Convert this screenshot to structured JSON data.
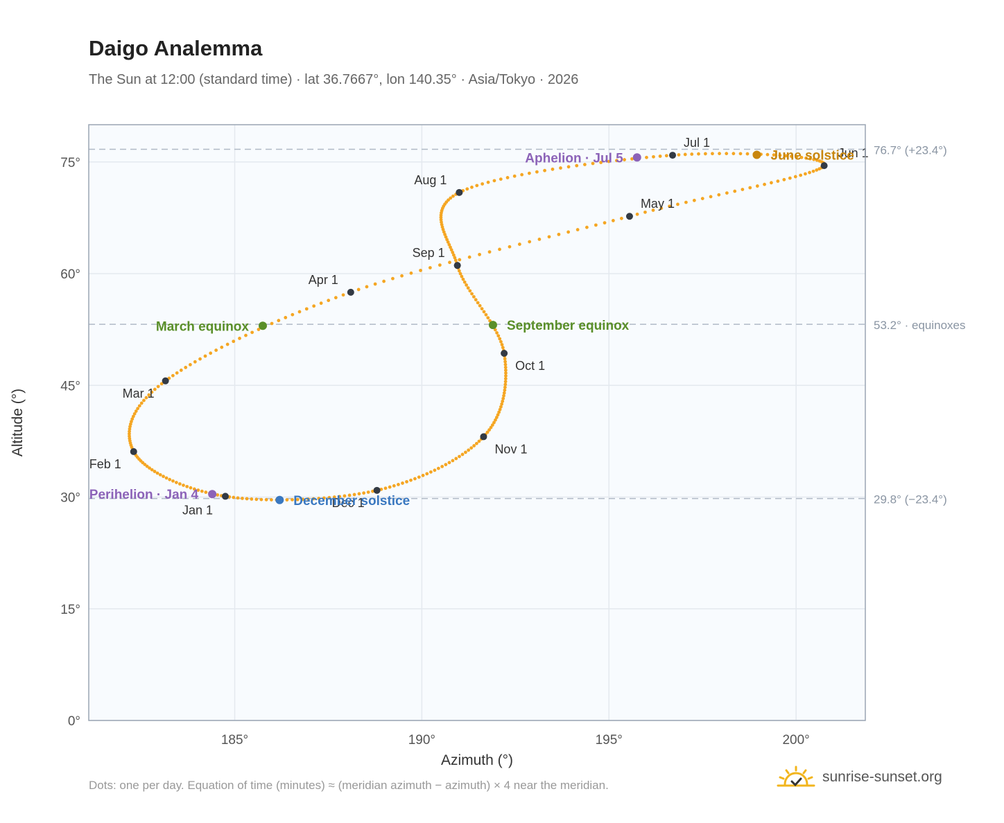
{
  "header": {
    "title": "Daigo Analemma",
    "subtitle": "The Sun at 12:00 (standard time) · lat 36.7667°, lon 140.35° · Asia/Tokyo · 2026"
  },
  "footer": {
    "note": "Dots: one per day. Equation of time (minutes) ≈ (meridian azimuth − azimuth) × 4 near the meridian.",
    "brand": "sunrise-sunset.org",
    "brand_icon": "sun-check-icon"
  },
  "chart_data": {
    "type": "scatter",
    "title": "Daigo Analemma",
    "xlabel": "Azimuth (°)",
    "ylabel": "Altitude (°)",
    "xlim": [
      181.1,
      201.85
    ],
    "ylim": [
      0,
      80
    ],
    "xticks": [
      185,
      190,
      195,
      200
    ],
    "yticks": [
      0,
      15,
      30,
      45,
      60,
      75
    ],
    "xtick_labels": [
      "185°",
      "190°",
      "195°",
      "200°"
    ],
    "ytick_labels": [
      "0°",
      "15°",
      "30°",
      "45°",
      "60°",
      "75°"
    ],
    "grid": true,
    "colors": {
      "track": "#f5a623",
      "month": "#333a44",
      "equinox": "#5a8f29",
      "june": "#c8860d",
      "december": "#3a78c0",
      "apsis": "#8c63b8",
      "refline": "#b0bac6"
    },
    "reference_lines": [
      {
        "y": 76.7,
        "label": "76.7° (+23.4°)"
      },
      {
        "y": 53.2,
        "label": "53.2° · equinoxes"
      },
      {
        "y": 29.8,
        "label": "29.8° (−23.4°)"
      }
    ],
    "month_markers": [
      {
        "label": "Jan 1",
        "x": 184.75,
        "y": 30.1
      },
      {
        "label": "Feb 1",
        "x": 182.3,
        "y": 36.1
      },
      {
        "label": "Mar 1",
        "x": 183.15,
        "y": 45.6
      },
      {
        "label": "Apr 1",
        "x": 188.1,
        "y": 57.5
      },
      {
        "label": "May 1",
        "x": 195.55,
        "y": 67.7
      },
      {
        "label": "Jun 1",
        "x": 200.75,
        "y": 74.5
      },
      {
        "label": "Jul 1",
        "x": 196.7,
        "y": 75.9
      },
      {
        "label": "Aug 1",
        "x": 191.0,
        "y": 70.9
      },
      {
        "label": "Sep 1",
        "x": 190.95,
        "y": 61.1
      },
      {
        "label": "Oct 1",
        "x": 192.2,
        "y": 49.3
      },
      {
        "label": "Nov 1",
        "x": 191.65,
        "y": 38.1
      },
      {
        "label": "Dec 1",
        "x": 188.8,
        "y": 30.9
      }
    ],
    "events": [
      {
        "label": "March equinox",
        "x": 185.75,
        "y": 53.0,
        "kind": "equinox"
      },
      {
        "label": "September equinox",
        "x": 191.9,
        "y": 53.1,
        "kind": "equinox"
      },
      {
        "label": "June solstice",
        "x": 198.95,
        "y": 75.95,
        "kind": "june"
      },
      {
        "label": "December solstice",
        "x": 186.2,
        "y": 29.6,
        "kind": "december"
      },
      {
        "label": "Perihelion · Jan 4",
        "x": 184.4,
        "y": 30.4,
        "kind": "apsis"
      },
      {
        "label": "Aphelion · Jul 5",
        "x": 195.75,
        "y": 75.6,
        "kind": "apsis"
      }
    ]
  }
}
